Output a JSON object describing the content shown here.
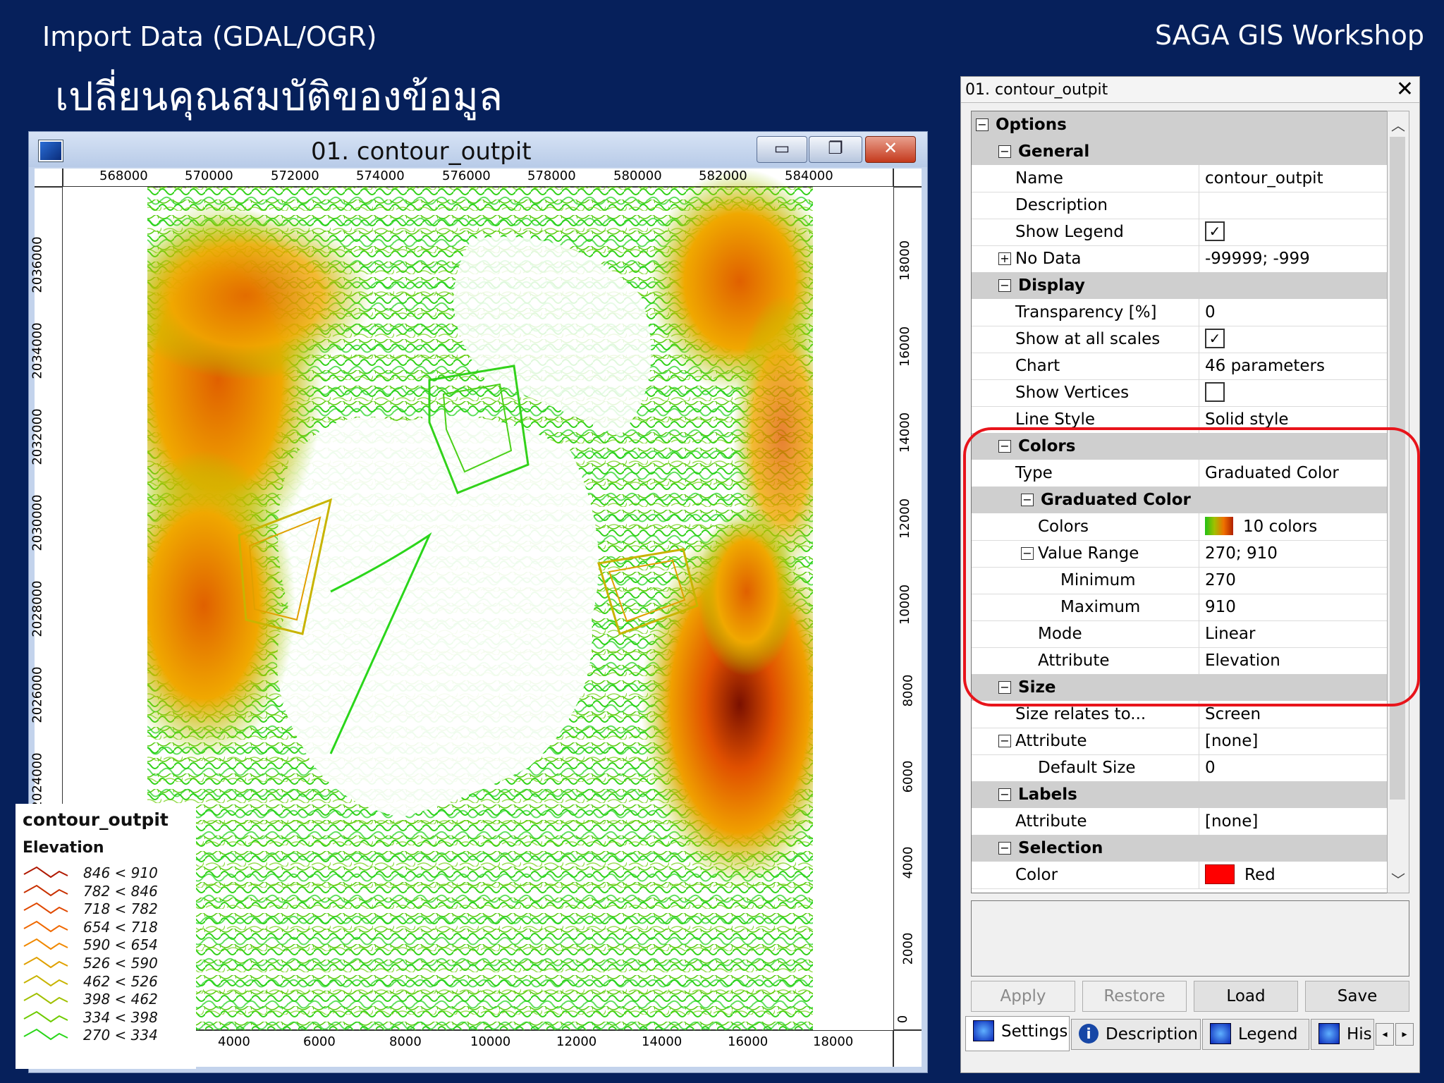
{
  "slide": {
    "title": "Import Data (GDAL/OGR)",
    "subtitle": "เปลี่ยนคุณสมบัติของข้อมูล",
    "brand": "SAGA GIS Workshop"
  },
  "map_window": {
    "title": "01. contour_outpit",
    "top_ticks": [
      "568000",
      "570000",
      "572000",
      "574000",
      "576000",
      "578000",
      "580000",
      "582000",
      "584000"
    ],
    "bottom_ticks": [
      "4000",
      "6000",
      "8000",
      "10000",
      "12000",
      "14000",
      "16000",
      "18000"
    ],
    "left_ticks": [
      "2036000",
      "2034000",
      "2032000",
      "2030000",
      "2028000",
      "2026000",
      "2024000"
    ],
    "right_ticks": [
      "18000",
      "16000",
      "14000",
      "12000",
      "10000",
      "8000",
      "6000",
      "4000",
      "2000",
      "0"
    ],
    "legend": {
      "title": "contour_outpit",
      "subtitle": "Elevation",
      "items": [
        {
          "label": "846 < 910",
          "color": "#b01800"
        },
        {
          "label": "782 < 846",
          "color": "#c83000"
        },
        {
          "label": "718 < 782",
          "color": "#e04800"
        },
        {
          "label": "654 < 718",
          "color": "#f06800"
        },
        {
          "label": "590 < 654",
          "color": "#f08800"
        },
        {
          "label": "526 < 590",
          "color": "#e0a000"
        },
        {
          "label": "462 < 526",
          "color": "#c8b400"
        },
        {
          "label": "398 < 462",
          "color": "#a0c000"
        },
        {
          "label": "334 < 398",
          "color": "#6ecb00"
        },
        {
          "label": "270 < 334",
          "color": "#2ad61a"
        }
      ]
    }
  },
  "properties": {
    "title": "01. contour_outpit",
    "rows": {
      "options": "Options",
      "general": "General",
      "name_k": "Name",
      "name_v": "contour_outpit",
      "desc_k": "Description",
      "legend_k": "Show Legend",
      "nodata_k": "No Data",
      "nodata_v": "-99999; -999",
      "display": "Display",
      "transp_k": "Transparency [%]",
      "transp_v": "0",
      "scales_k": "Show at all scales",
      "chart_k": "Chart",
      "chart_v": "46 parameters",
      "vert_k": "Show Vertices",
      "line_k": "Line Style",
      "line_v": "Solid style",
      "colors": "Colors",
      "type_k": "Type",
      "type_v": "Graduated Color",
      "graduated": "Graduated Color",
      "gcolors_k": "Colors",
      "gcolors_v": "10 colors",
      "range_k": "Value Range",
      "range_v": "270; 910",
      "min_k": "Minimum",
      "min_v": "270",
      "max_k": "Maximum",
      "max_v": "910",
      "mode_k": "Mode",
      "mode_v": "Linear",
      "attr_k": "Attribute",
      "attr_v": "Elevation",
      "size": "Size",
      "sizerel_k": "Size relates to...",
      "sizerel_v": "Screen",
      "sattr_k": "Attribute",
      "sattr_v": "[none]",
      "defsize_k": "Default Size",
      "defsize_v": "0",
      "labels": "Labels",
      "lattr_k": "Attribute",
      "lattr_v": "[none]",
      "selection": "Selection",
      "scolor_k": "Color",
      "scolor_v": "Red"
    },
    "buttons": {
      "apply": "Apply",
      "restore": "Restore",
      "load": "Load",
      "save": "Save"
    },
    "tabs": {
      "settings": "Settings",
      "description": "Description",
      "legend": "Legend",
      "histogram": "His"
    }
  }
}
